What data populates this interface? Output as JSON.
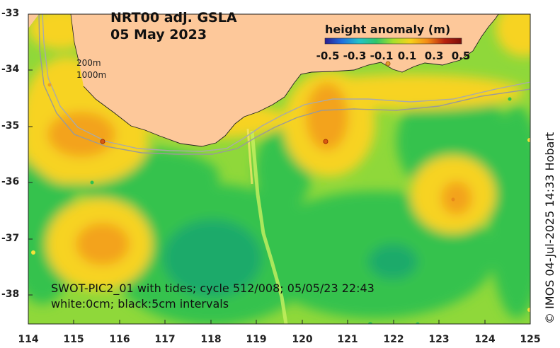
{
  "title": {
    "line1": "NRT00 adj. GSLA",
    "line2": "05 May 2023"
  },
  "colorbar": {
    "title": "height anomaly (m)",
    "ticks": [
      "-0.5",
      "-0.3",
      "-0.1",
      "0.1",
      "0.3",
      "0.5"
    ],
    "colors": [
      "#2b1d8f",
      "#1f6fe0",
      "#22c3c8",
      "#2fc66a",
      "#a8e02a",
      "#f6d21a",
      "#f38a16",
      "#b8230f",
      "#7a0e0a"
    ]
  },
  "isobaths": {
    "label1": "200m",
    "label2": "1000m"
  },
  "axes": {
    "yticks": [
      "-33",
      "-34",
      "-35",
      "-36",
      "-37",
      "-38"
    ],
    "xticks": [
      "114",
      "115",
      "116",
      "117",
      "118",
      "119",
      "120",
      "121",
      "122",
      "123",
      "124",
      "125"
    ]
  },
  "annotation": {
    "line1": "SWOT-PIC2_01 with tides; cycle 512/008; 05/05/23 22:43",
    "line2": "white:0cm; black:5cm intervals"
  },
  "credit": "© IMOS 04-Jul-2025 14:33 Hobart",
  "colors": {
    "land": "#fdc89a",
    "ocean_base": "#8fd83a",
    "orange_high": "#f3a31e",
    "yellow_mid": "#f7d321",
    "green_low": "#35c24d",
    "teal_lower": "#1faa6a"
  }
}
